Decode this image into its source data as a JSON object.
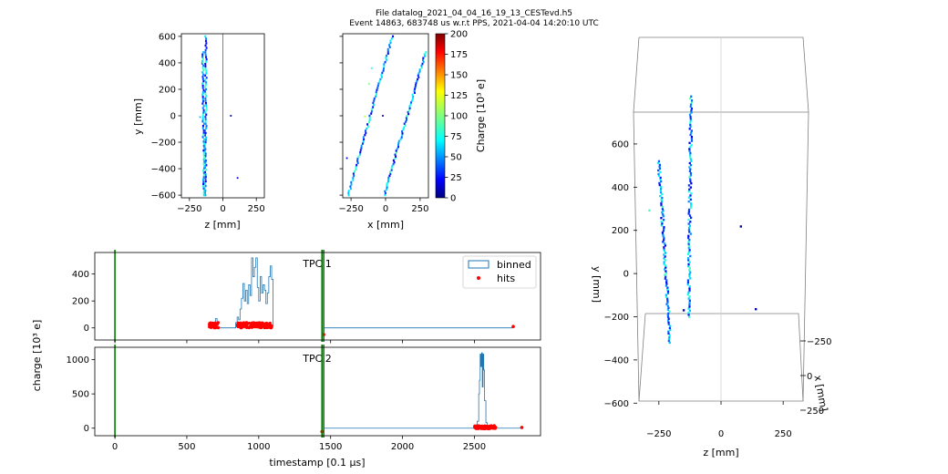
{
  "figure": {
    "title_line1": "File datalog_2021_04_04_16_19_13_CESTevd.h5",
    "title_line2": "Event 14863, 683748 us w.r.t PPS, 2021-04-04 14:20:10 UTC"
  },
  "chart_data": [
    {
      "id": "zy",
      "type": "scatter",
      "xlabel": "z [mm]",
      "ylabel": "y [mm]",
      "xlim": [
        -310,
        310
      ],
      "ylim": [
        -620,
        620
      ],
      "xticks": [
        -250,
        0,
        250
      ],
      "yticks": [
        -600,
        -400,
        -200,
        0,
        200,
        400,
        600
      ],
      "vlines": [
        0
      ],
      "tracks": [
        {
          "x0": -130,
          "y0": -600,
          "x1": -125,
          "y1": 600,
          "n": 70
        },
        {
          "x0": -140,
          "y0": -600,
          "x1": -150,
          "y1": 480,
          "n": 65
        }
      ],
      "points": [
        [
          -170,
          -10,
          60
        ],
        [
          60,
          0,
          10
        ],
        [
          110,
          -470,
          10
        ],
        [
          -150,
          400,
          90
        ]
      ]
    },
    {
      "id": "xy",
      "type": "scatter",
      "xlabel": "x [mm]",
      "ylabel": "",
      "xlim": [
        -310,
        310
      ],
      "ylim": [
        -620,
        620
      ],
      "xticks": [
        -250,
        0,
        250
      ],
      "yticks": [
        -600,
        -400,
        -200,
        0,
        200,
        400,
        600
      ],
      "tracks": [
        {
          "x0": -270,
          "y0": -600,
          "x1": 50,
          "y1": 600,
          "n": 75
        },
        {
          "x0": -10,
          "y0": -600,
          "x1": 290,
          "y1": 480,
          "n": 75
        }
      ],
      "points": [
        [
          -100,
          360,
          80
        ],
        [
          -150,
          -5,
          110
        ],
        [
          -20,
          0,
          10
        ],
        [
          -280,
          -320,
          20
        ],
        [
          -120,
          240,
          100
        ]
      ]
    },
    {
      "id": "colorbar",
      "type": "colorbar",
      "label": "Charge [10³ e]",
      "range": [
        0,
        200
      ],
      "ticks": [
        0,
        25,
        50,
        75,
        100,
        125,
        150,
        175,
        200
      ]
    },
    {
      "id": "tpc1",
      "type": "step",
      "title": "TPC 1",
      "xlim": [
        -140,
        2960
      ],
      "ylim": [
        -90,
        560
      ],
      "xticks": [
        0,
        500,
        1000,
        1500,
        2000,
        2500
      ],
      "yticks": [
        0,
        200,
        400
      ],
      "vlines": [
        0,
        1440,
        1452
      ],
      "bins": [
        [
          650,
          0
        ],
        [
          690,
          40
        ],
        [
          700,
          70
        ],
        [
          710,
          0
        ],
        [
          840,
          40
        ],
        [
          850,
          80
        ],
        [
          860,
          60
        ],
        [
          870,
          140
        ],
        [
          880,
          220
        ],
        [
          890,
          330
        ],
        [
          900,
          200
        ],
        [
          910,
          280
        ],
        [
          920,
          180
        ],
        [
          930,
          320
        ],
        [
          940,
          240
        ],
        [
          950,
          520
        ],
        [
          960,
          380
        ],
        [
          970,
          450
        ],
        [
          980,
          520
        ],
        [
          990,
          300
        ],
        [
          1000,
          200
        ],
        [
          1010,
          380
        ],
        [
          1020,
          260
        ],
        [
          1030,
          320
        ],
        [
          1040,
          280
        ],
        [
          1050,
          180
        ],
        [
          1060,
          260
        ],
        [
          1070,
          380
        ],
        [
          1080,
          460
        ],
        [
          1090,
          360
        ],
        [
          1100,
          0
        ]
      ],
      "baseline": [
        1450,
        2770
      ],
      "hits_x": [
        [
          650,
          720
        ],
        [
          850,
          1090
        ]
      ],
      "hits_y": [
        0,
        40
      ],
      "hits_extra": [
        [
          1452,
          -50
        ],
        [
          2770,
          10
        ]
      ],
      "legend": [
        "binned",
        "hits"
      ]
    },
    {
      "id": "tpc2",
      "type": "step",
      "title": "TPC 2",
      "xlabel": "timestamp [0.1 μs]",
      "xlim": [
        -140,
        2960
      ],
      "ylim": [
        -110,
        1180
      ],
      "xticks": [
        0,
        500,
        1000,
        1500,
        2000,
        2500
      ],
      "yticks": [
        0,
        500,
        1000
      ],
      "vlines": [
        0,
        1440,
        1452
      ],
      "bins": [
        [
          2500,
          0
        ],
        [
          2510,
          50
        ],
        [
          2520,
          100
        ],
        [
          2530,
          500
        ],
        [
          2535,
          700
        ],
        [
          2540,
          1080
        ],
        [
          2545,
          900
        ],
        [
          2550,
          1100
        ],
        [
          2555,
          600
        ],
        [
          2560,
          1080
        ],
        [
          2565,
          850
        ],
        [
          2570,
          400
        ],
        [
          2580,
          80
        ],
        [
          2590,
          0
        ]
      ],
      "baseline": [
        1452,
        2830
      ],
      "hits_x": [
        [
          2500,
          2650
        ]
      ],
      "hits_y": [
        -10,
        40
      ],
      "hits_extra": [
        [
          2830,
          10
        ],
        [
          1440,
          -50
        ]
      ]
    },
    {
      "id": "shared",
      "type": "label",
      "ylabel": "charge [10³ e]"
    },
    {
      "id": "view3d",
      "type": "scatter3d",
      "xlabel": "z [mm]",
      "ylabel": "y [mm]",
      "zlabel": "x [mm]",
      "xlim": [
        -330,
        330
      ],
      "ylim": [
        -620,
        680
      ],
      "xticks": [
        -250,
        0,
        250
      ],
      "yticks": [
        -600,
        -400,
        -200,
        0,
        200,
        400,
        600
      ],
      "zticks": [
        -250,
        0,
        250
      ]
    }
  ]
}
